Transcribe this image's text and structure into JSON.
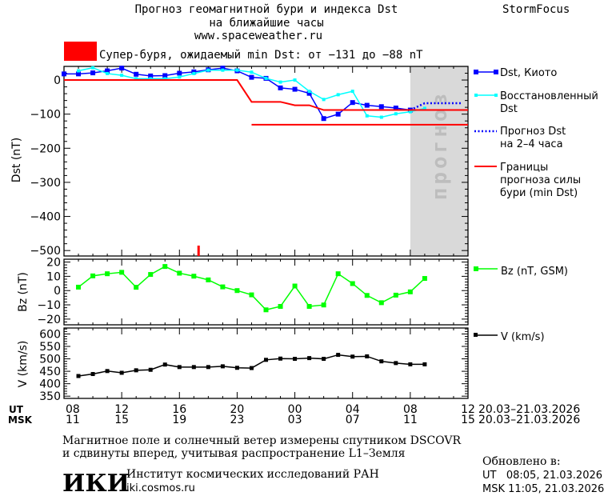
{
  "header": {
    "title_line1": "Прогноз геомагнитной бури и индекса Dst",
    "title_line2": "на ближайшие часы",
    "site": "www.spaceweather.ru",
    "brand": "StormFocus",
    "storm_label": "Супер-буря, ожидаемый min Dst: от −131 до −88 nT",
    "storm_color": "#ff0000"
  },
  "legend": {
    "dst_kyoto": "Dst, Киото",
    "restored_1": "Восстановленный",
    "restored_2": "Dst",
    "forecast_1": "Прогноз Dst",
    "forecast_2": "на 2–4 часа",
    "bounds_1": "Границы",
    "bounds_2": "прогноза силы",
    "bounds_3": "бури (min Dst)",
    "bz": "Bz (nT, GSM)",
    "v": "V (km/s)"
  },
  "chart_data": [
    {
      "type": "line",
      "title": "Dst",
      "ylabel": "Dst (nT)",
      "ylim": [
        -516,
        40
      ],
      "yticks": [
        "0",
        "−100",
        "−200",
        "−300",
        "−400",
        "−500"
      ],
      "ytick_values": [
        0,
        -100,
        -200,
        -300,
        -400,
        -500
      ],
      "x_unit": "hours since 08 UT 20.03",
      "forecast_region_label": "прогноз",
      "forecast_region": [
        24,
        28
      ],
      "series": [
        {
          "name": "Dst, Киото",
          "color": "#0000ff",
          "x": [
            0,
            1,
            2,
            3,
            4,
            5,
            6,
            7,
            8,
            9,
            10,
            11,
            12,
            13,
            14,
            15,
            16,
            17,
            18,
            19,
            20,
            21,
            22,
            23,
            24
          ],
          "y": [
            18,
            18,
            21,
            27,
            35,
            17,
            12,
            13,
            20,
            24,
            30,
            35,
            27,
            8,
            5,
            -23,
            -27,
            -39,
            -113,
            -100,
            -66,
            -74,
            -78,
            -82,
            -88
          ]
        },
        {
          "name": "Восстановленный Dst",
          "color": "#00ffff",
          "x": [
            1,
            2,
            3,
            4,
            5,
            6,
            7,
            8,
            9,
            10,
            11,
            12,
            13,
            14,
            15,
            16,
            17,
            18,
            19,
            20,
            21,
            22,
            23,
            24,
            25
          ],
          "y": [
            27,
            36,
            19,
            14,
            4,
            4,
            4,
            9,
            19,
            29,
            29,
            29,
            23,
            5,
            -6,
            0,
            -33,
            -57,
            -43,
            -33,
            -105,
            -109,
            -99,
            -93,
            -83
          ]
        },
        {
          "name": "Прогноз Dst на 2-4 часа",
          "color": "#0000ff",
          "x": [
            24,
            25,
            27.5
          ],
          "y": [
            -88,
            -68,
            -68
          ]
        },
        {
          "name": "Границы прогноза (верхняя)",
          "color": "#ff0000",
          "x": [
            0,
            12,
            13,
            15,
            16,
            17,
            18,
            28
          ],
          "y": [
            0,
            0,
            -64,
            -64,
            -74,
            -74,
            -88,
            -88
          ]
        },
        {
          "name": "Границы прогноза (нижняя)",
          "color": "#ff0000",
          "x": [
            13,
            28
          ],
          "y": [
            -131,
            -131
          ]
        }
      ],
      "event_marker_x": 9.3
    },
    {
      "type": "line",
      "title": "Bz",
      "ylabel": "Bz (nT)",
      "ylim": [
        -24,
        22
      ],
      "yticks": [
        "20",
        "10",
        "0",
        "−10",
        "−20"
      ],
      "ytick_values": [
        20,
        10,
        0,
        -10,
        -20
      ],
      "series": [
        {
          "name": "Bz (nT, GSM)",
          "color": "#00ff00",
          "x": [
            1,
            2,
            3,
            4,
            5,
            6,
            7,
            8,
            9,
            10,
            11,
            12,
            13,
            14,
            15,
            16,
            17,
            18,
            19,
            20,
            21,
            22,
            23,
            24,
            25
          ],
          "y": [
            2.4,
            10.3,
            11.8,
            12.8,
            2.3,
            11.3,
            16.9,
            12.2,
            10.1,
            7.5,
            2.6,
            0,
            -3,
            -13.5,
            -11.1,
            3.2,
            -11.1,
            -10.1,
            11.8,
            4.9,
            -3.4,
            -8.5,
            -3.2,
            -0.9,
            8.5
          ]
        }
      ]
    },
    {
      "type": "line",
      "title": "V",
      "ylabel": "V (km/s)",
      "ylim": [
        341,
        624
      ],
      "yticks": [
        "600",
        "550",
        "500",
        "450",
        "400",
        "350"
      ],
      "ytick_values": [
        600,
        550,
        500,
        450,
        400,
        350
      ],
      "series": [
        {
          "name": "V (km/s)",
          "color": "#000000",
          "x": [
            1,
            2,
            3,
            4,
            5,
            6,
            7,
            8,
            9,
            10,
            11,
            12,
            13,
            14,
            15,
            16,
            17,
            18,
            19,
            20,
            21,
            22,
            23,
            24,
            25
          ],
          "y": [
            431,
            439,
            451,
            444,
            454,
            456,
            477,
            467,
            467,
            467,
            470,
            464,
            463,
            496,
            501,
            500,
            503,
            500,
            516,
            509,
            510,
            490,
            483,
            478,
            478
          ]
        }
      ]
    }
  ],
  "xaxis": {
    "ut_label": "UT",
    "msk_label": "MSK",
    "ut_ticks": [
      "08",
      "12",
      "16",
      "20",
      "00",
      "04",
      "08",
      "12"
    ],
    "msk_ticks": [
      "11",
      "15",
      "19",
      "23",
      "03",
      "07",
      "11",
      "15"
    ],
    "ut_dates": "20.03–21.03.2026",
    "msk_dates": "20.03–21.03.2026"
  },
  "footer": {
    "note_1": "Магнитное поле и солнечный ветер измерены спутником DSCOVR",
    "note_2": "и сдвинуты вперед, учитывая распространение L1–Земля",
    "logo": "ИКИ",
    "institute": "Институт космических исследований РАН",
    "institute_url": "iki.cosmos.ru",
    "updated_label": "Обновлено в:",
    "updated_ut": "UT   08:05, 21.03.2026",
    "updated_msk": "MSK 11:05, 21.03.2026"
  }
}
